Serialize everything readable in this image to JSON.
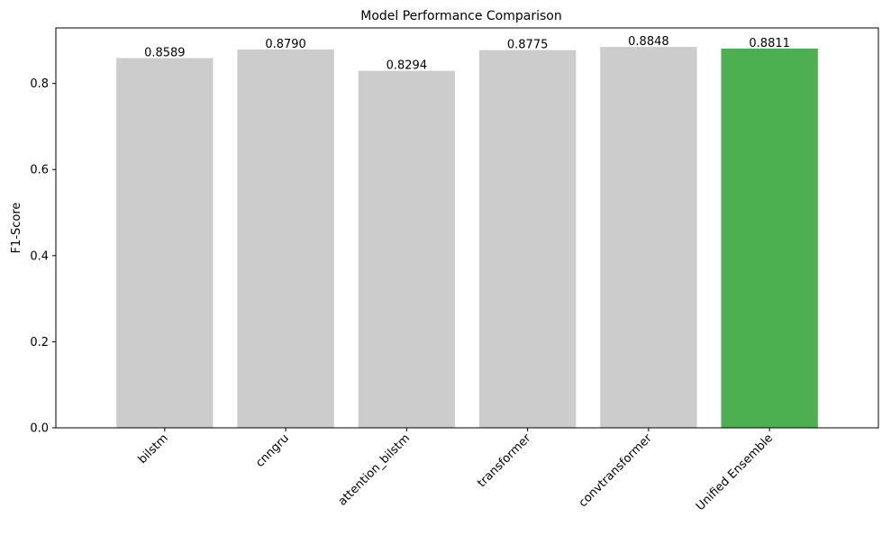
{
  "chart_data": {
    "type": "bar",
    "title": "Model Performance Comparison",
    "xlabel": "",
    "ylabel": "F1-Score",
    "categories": [
      "bilstm",
      "cnngru",
      "attention_bilstm",
      "transformer",
      "convtransformer",
      "Unified Ensemble"
    ],
    "values": [
      0.8589,
      0.879,
      0.8294,
      0.8775,
      0.8848,
      0.8811
    ],
    "value_labels": [
      "0.8589",
      "0.8790",
      "0.8294",
      "0.8775",
      "0.8848",
      "0.8811"
    ],
    "bar_colors": [
      "#cccccc",
      "#cccccc",
      "#cccccc",
      "#cccccc",
      "#cccccc",
      "#4caf50"
    ],
    "ylim": [
      0,
      0.929
    ],
    "yticks": [
      0.0,
      0.2,
      0.4,
      0.6,
      0.8
    ],
    "ytick_labels": [
      "0.0",
      "0.2",
      "0.4",
      "0.6",
      "0.8"
    ],
    "grid": false,
    "legend": "none",
    "xtick_rotation": "45 degrees"
  }
}
